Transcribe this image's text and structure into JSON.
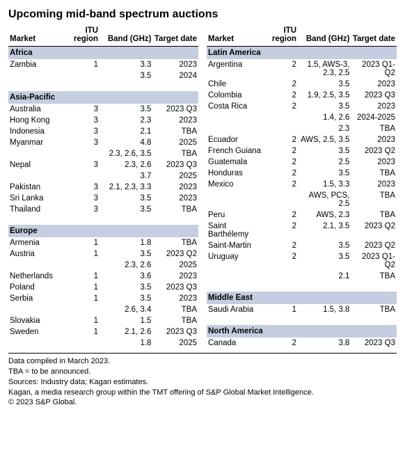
{
  "title": "Upcoming mid-band spectrum auctions",
  "headers": {
    "market": "Market",
    "itu": "ITU region",
    "band": "Band (GHz)",
    "date": "Target date"
  },
  "leftGroups": [
    {
      "region": "Africa",
      "rows": [
        {
          "market": "Zambia",
          "itu": "1",
          "band": "3.3",
          "date": "2023"
        },
        {
          "market": "",
          "itu": "",
          "band": "3.5",
          "date": "2024"
        }
      ]
    },
    {
      "region": "Asia-Pacific",
      "rows": [
        {
          "market": "Australia",
          "itu": "3",
          "band": "3.5",
          "date": "2023 Q3"
        },
        {
          "market": "Hong Kong",
          "itu": "3",
          "band": "2.3",
          "date": "2023"
        },
        {
          "market": "Indonesia",
          "itu": "3",
          "band": "2.1",
          "date": "TBA"
        },
        {
          "market": "Myanmar",
          "itu": "3",
          "band": "4.8",
          "date": "2025"
        },
        {
          "market": "",
          "itu": "",
          "band": "2.3, 2.6, 3.5",
          "date": "TBA"
        },
        {
          "market": "Nepal",
          "itu": "3",
          "band": "2.3, 2.6",
          "date": "2023 Q3"
        },
        {
          "market": "",
          "itu": "",
          "band": "3.7",
          "date": "2025"
        },
        {
          "market": "Pakistan",
          "itu": "3",
          "band": "2.1, 2.3, 3.3",
          "date": "2023"
        },
        {
          "market": "Sri Lanka",
          "itu": "3",
          "band": "3.5",
          "date": "2023"
        },
        {
          "market": "Thailand",
          "itu": "3",
          "band": "3.5",
          "date": "TBA"
        }
      ]
    },
    {
      "region": "Europe",
      "rows": [
        {
          "market": "Armenia",
          "itu": "1",
          "band": "1.8",
          "date": "TBA"
        },
        {
          "market": "Austria",
          "itu": "1",
          "band": "3.5",
          "date": "2023 Q2"
        },
        {
          "market": "",
          "itu": "",
          "band": "2.3, 2.6",
          "date": "2025"
        },
        {
          "market": "Netherlands",
          "itu": "1",
          "band": "3.6",
          "date": "2023"
        },
        {
          "market": "Poland",
          "itu": "1",
          "band": "3.5",
          "date": "2023 Q3"
        },
        {
          "market": "Serbia",
          "itu": "1",
          "band": "3.5",
          "date": "2023"
        },
        {
          "market": "",
          "itu": "",
          "band": "2.6, 3.4",
          "date": "TBA"
        },
        {
          "market": "Slovakia",
          "itu": "1",
          "band": "1.5",
          "date": "TBA"
        },
        {
          "market": "Sweden",
          "itu": "1",
          "band": "2.1, 2.6",
          "date": "2023 Q3"
        },
        {
          "market": "",
          "itu": "",
          "band": "1.8",
          "date": "2025"
        }
      ]
    }
  ],
  "rightGroups": [
    {
      "region": "Latin America",
      "rows": [
        {
          "market": "Argentina",
          "itu": "2",
          "band": "1.5, AWS-3, 2.3, 2.5",
          "date": "2023 Q1-Q2"
        },
        {
          "market": "Chile",
          "itu": "2",
          "band": "3.5",
          "date": "2023"
        },
        {
          "market": "Colombia",
          "itu": "2",
          "band": "1.9, 2.5, 3.5",
          "date": "2023 Q3"
        },
        {
          "market": "Costa Rica",
          "itu": "2",
          "band": "3.5",
          "date": "2023"
        },
        {
          "market": "",
          "itu": "",
          "band": "1.4, 2.6",
          "date": "2024-2025"
        },
        {
          "market": "",
          "itu": "",
          "band": "2.3",
          "date": "TBA"
        },
        {
          "market": "Ecuador",
          "itu": "2",
          "band": "AWS, 2.5, 3.5",
          "date": "2023"
        },
        {
          "market": "French Guiana",
          "itu": "2",
          "band": "3.5",
          "date": "2023 Q2"
        },
        {
          "market": "Guatemala",
          "itu": "2",
          "band": "2.5",
          "date": "2023"
        },
        {
          "market": "Honduras",
          "itu": "2",
          "band": "3.5",
          "date": "TBA"
        },
        {
          "market": "Mexico",
          "itu": "2",
          "band": "1.5, 3.3",
          "date": "2023"
        },
        {
          "market": "",
          "itu": "",
          "band": "AWS, PCS, 2.5",
          "date": "TBA"
        },
        {
          "market": "Peru",
          "itu": "2",
          "band": "AWS, 2.3",
          "date": "TBA"
        },
        {
          "market": "Saint Barthélemy",
          "itu": "2",
          "band": "2.1, 3.5",
          "date": "2023 Q2"
        },
        {
          "market": "Saint-Martin",
          "itu": "2",
          "band": "3.5",
          "date": "2023 Q2"
        },
        {
          "market": "Uruguay",
          "itu": "2",
          "band": "3.5",
          "date": "2023 Q1-Q2"
        },
        {
          "market": "",
          "itu": "",
          "band": "2.1",
          "date": "TBA"
        }
      ]
    },
    {
      "region": "Middle East",
      "rows": [
        {
          "market": "Saudi Arabia",
          "itu": "1",
          "band": "1.5, 3.8",
          "date": "TBA"
        }
      ]
    },
    {
      "region": "North America",
      "rows": [
        {
          "market": "Canada",
          "itu": "2",
          "band": "3.8",
          "date": "2023 Q3"
        }
      ]
    }
  ],
  "footer": [
    "Data compiled in March 2023.",
    "TBA = to be announced.",
    "Sources: Industry data; Kagan estimates.",
    "Kagan, a media research group within the TMT offering of S&P Global Market Intelligence.",
    "© 2023 S&P Global."
  ]
}
